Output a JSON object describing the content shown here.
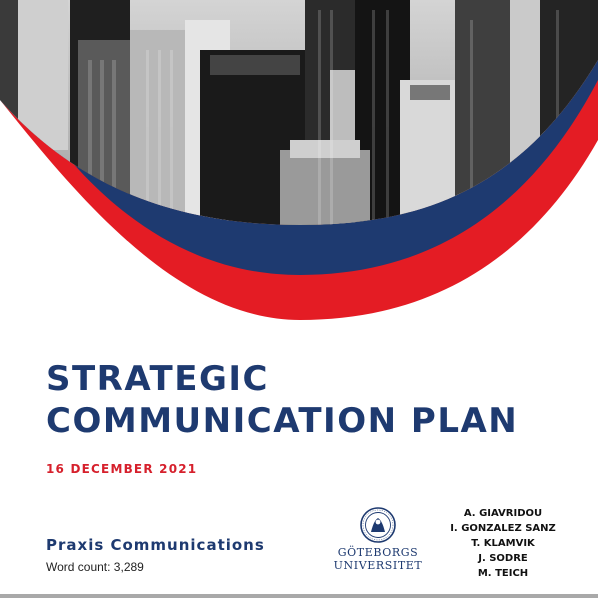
{
  "title_lines": [
    "STRATEGIC",
    "COMMUNICATION PLAN"
  ],
  "date": "16 DECEMBER 2021",
  "organization": "Praxis Communications",
  "word_count": "Word count: 3,289",
  "university": {
    "line1": "GÖTEBORGS",
    "line2": "UNIVERSITET"
  },
  "authors": [
    "A. GIAVRIDOU",
    "I. GONZALEZ SANZ",
    "T. KLAMVIK",
    "J. SODRE",
    "M. TEICH"
  ],
  "colors": {
    "navy": "#1e3a70",
    "red": "#d6202c",
    "sky": "#c9c9c9"
  },
  "icons": {
    "seal": "university-seal-icon",
    "photo": "city-skyline-photo"
  }
}
